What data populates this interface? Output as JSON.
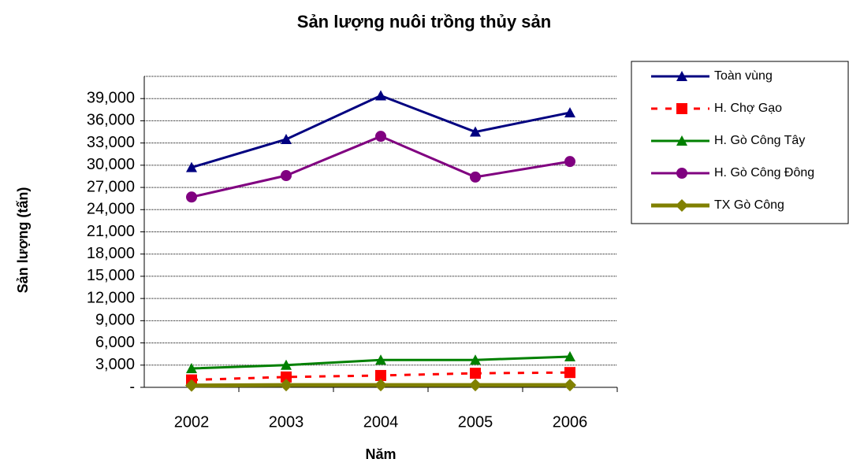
{
  "chart_data": {
    "type": "line",
    "title": "Sản lượng nuôi trồng thủy sản",
    "x_label": "Năm",
    "y_label": "Sản lượng (tấn)",
    "categories": [
      "2002",
      "2003",
      "2004",
      "2005",
      "2006"
    ],
    "ylim": [
      0,
      42000
    ],
    "yticks": [
      {
        "value": 0,
        "label": "-"
      },
      {
        "value": 3000,
        "label": "3,000"
      },
      {
        "value": 6000,
        "label": "6,000"
      },
      {
        "value": 9000,
        "label": "9,000"
      },
      {
        "value": 12000,
        "label": "12,000"
      },
      {
        "value": 15000,
        "label": "15,000"
      },
      {
        "value": 18000,
        "label": "18,000"
      },
      {
        "value": 21000,
        "label": "21,000"
      },
      {
        "value": 24000,
        "label": "24,000"
      },
      {
        "value": 27000,
        "label": "27,000"
      },
      {
        "value": 30000,
        "label": "30,000"
      },
      {
        "value": 33000,
        "label": "33,000"
      },
      {
        "value": 36000,
        "label": "36,000"
      },
      {
        "value": 39000,
        "label": "39,000"
      }
    ],
    "grid": true,
    "legend": "right",
    "series": [
      {
        "name": "Toàn vùng",
        "color": "#000080",
        "marker": "triangle",
        "values": [
          29700,
          33500,
          39400,
          34500,
          37100
        ]
      },
      {
        "name": "H. Chợ Gạo",
        "color": "#ff0000",
        "marker": "square",
        "dashed": true,
        "values": [
          1000,
          1400,
          1600,
          1900,
          2000
        ]
      },
      {
        "name": "H. Gò Công Tây",
        "color": "#008000",
        "marker": "triangle",
        "values": [
          2550,
          3000,
          3700,
          3700,
          4150
        ]
      },
      {
        "name": "H. Gò Công Đông",
        "color": "#800080",
        "marker": "circle",
        "values": [
          25700,
          28600,
          33900,
          28400,
          30500
        ]
      },
      {
        "name": "TX Gò Công",
        "color": "#808000",
        "marker": "diamond",
        "values": [
          250,
          300,
          300,
          300,
          300
        ]
      }
    ]
  }
}
